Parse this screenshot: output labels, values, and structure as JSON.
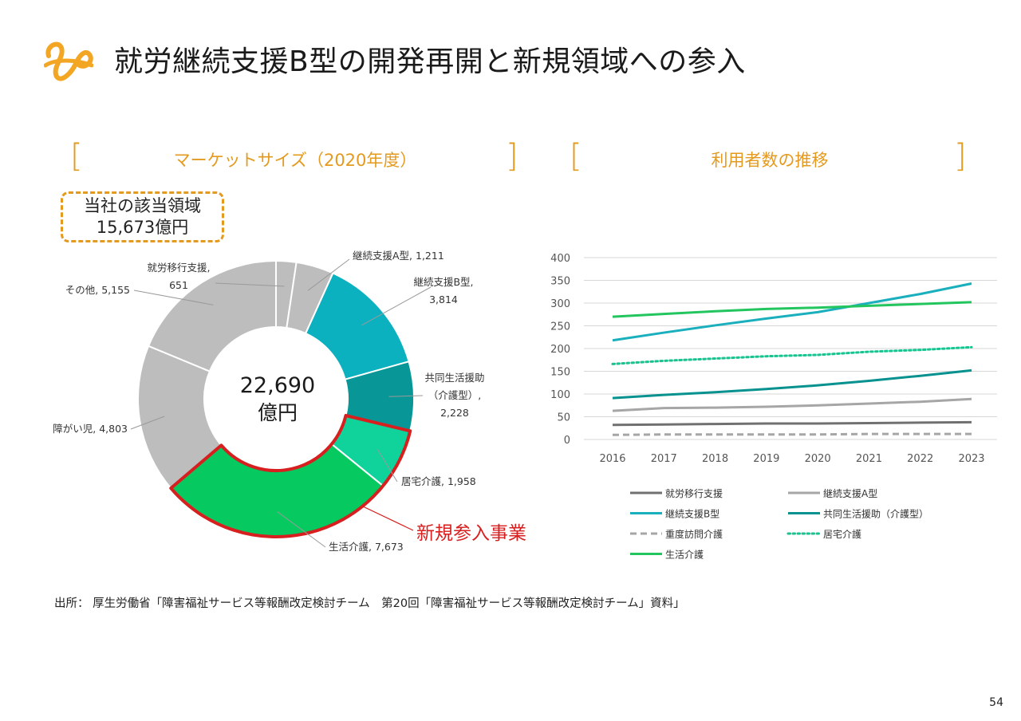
{
  "title": "就労継続支援B型の開発再開と新規領域への参入",
  "page_number": "54",
  "source": "出所： 厚生労働省「障害福祉サービス等報酬改定検討チーム　第20回「障害福祉サービス等報酬改定検討チーム」資料」",
  "callout": {
    "line1": "当社の該当領域",
    "line2": "15,673億円"
  },
  "new_entry_label": "新規参入事業",
  "colors": {
    "accent": "#E49A1E",
    "highlight": "#D71F1F"
  },
  "chart_data": [
    {
      "type": "pie",
      "title": "マーケットサイズ（2020年度）",
      "center_label": [
        "22,690",
        "億円"
      ],
      "slices": [
        {
          "name": "就労移行支援",
          "value": 651,
          "label_lines": [
            "就労移行支援,",
            "651"
          ],
          "color": "#BDBDBD"
        },
        {
          "name": "継続支援A型",
          "value": 1211,
          "label_lines": [
            "継続支援A型, 1,211"
          ],
          "color": "#BDBDBD"
        },
        {
          "name": "継続支援B型",
          "value": 3814,
          "label_lines": [
            "継続支援B型,",
            "3,814"
          ],
          "color": "#0BB1BF"
        },
        {
          "name": "共同生活援助（介護型）",
          "value": 2228,
          "label_lines": [
            "共同生活援助",
            "（介護型）,",
            "2,228"
          ],
          "color": "#089796"
        },
        {
          "name": "居宅介護",
          "value": 1958,
          "label_lines": [
            "居宅介護, 1,958"
          ],
          "color": "#0FD39A"
        },
        {
          "name": "生活介護",
          "value": 7673,
          "label_lines": [
            "生活介護, 7,673"
          ],
          "color": "#06C95F"
        },
        {
          "name": "障がい児",
          "value": 4803,
          "label_lines": [
            "障がい児, 4,803"
          ],
          "color": "#BDBDBD"
        },
        {
          "name": "その他",
          "value": 5155,
          "label_lines": [
            "その他, 5,155"
          ],
          "color": "#BDBDBD"
        }
      ]
    },
    {
      "type": "line",
      "title": "利用者数の推移",
      "x": [
        "2016",
        "2017",
        "2018",
        "2019",
        "2020",
        "2021",
        "2022",
        "2023"
      ],
      "ylim": [
        0,
        400
      ],
      "yticks": [
        0,
        50,
        100,
        150,
        200,
        250,
        300,
        350,
        400
      ],
      "grid": true,
      "legend_position": "bottom",
      "series": [
        {
          "name": "就労移行支援",
          "color": "#707070",
          "dash": "solid",
          "values": [
            32,
            33,
            34,
            35,
            35,
            36,
            37,
            38
          ]
        },
        {
          "name": "継続支援A型",
          "color": "#A6A6A6",
          "dash": "solid",
          "values": [
            63,
            69,
            70,
            72,
            75,
            79,
            83,
            89
          ]
        },
        {
          "name": "継続支援B型",
          "color": "#1AAFBD",
          "dash": "solid",
          "values": [
            218,
            235,
            251,
            266,
            280,
            300,
            320,
            343
          ]
        },
        {
          "name": "共同生活援助（介護型）",
          "color": "#08928F",
          "dash": "solid",
          "values": [
            91,
            98,
            104,
            111,
            119,
            129,
            140,
            152
          ]
        },
        {
          "name": "重度訪問介護",
          "color": "#A6A6A6",
          "dash": "dashed",
          "values": [
            10,
            11,
            11,
            11,
            11,
            12,
            12,
            12
          ]
        },
        {
          "name": "居宅介護",
          "color": "#17C48F",
          "dash": "dotted",
          "values": [
            166,
            173,
            178,
            183,
            186,
            193,
            197,
            203
          ]
        },
        {
          "name": "生活介護",
          "color": "#22C55E",
          "dash": "solid",
          "values": [
            270,
            276,
            282,
            287,
            290,
            294,
            298,
            302
          ]
        }
      ]
    }
  ]
}
